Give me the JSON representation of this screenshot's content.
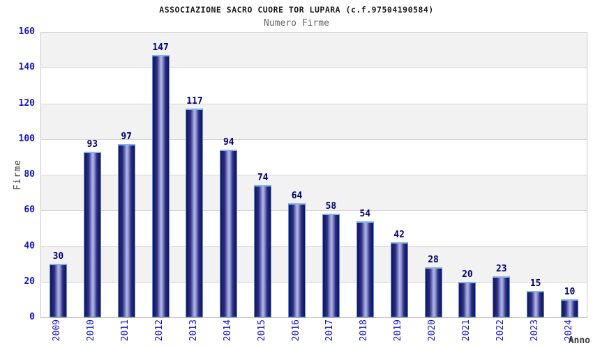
{
  "chart_data": {
    "type": "bar",
    "title": "ASSOCIAZIONE SACRO CUORE TOR LUPARA (c.f.97504190584)",
    "subtitle": "Numero Firme",
    "xlabel": "Anno",
    "ylabel": "Firme",
    "categories": [
      "2009",
      "2010",
      "2011",
      "2012",
      "2013",
      "2014",
      "2015",
      "2016",
      "2017",
      "2018",
      "2019",
      "2020",
      "2021",
      "2022",
      "2023",
      "2024"
    ],
    "values": [
      30,
      93,
      97,
      147,
      117,
      94,
      74,
      64,
      58,
      54,
      42,
      28,
      20,
      23,
      15,
      10
    ],
    "ylim": [
      0,
      160
    ],
    "ytick_step": 20,
    "grid": "horizontal-bands-alternating",
    "legend": "none",
    "bar_labels_shown": true,
    "x_labels_rotated_degrees": 90,
    "colors": {
      "bar_border": "#5a94d8",
      "bar_dark": "#14145a",
      "bar_mid": "#2d2d84",
      "bar_light": "#b4bae6",
      "tick_label": "#1414cc",
      "value_label": "#00006e",
      "band_gray": "#f2f2f2",
      "band_white": "#ffffff",
      "grid_line": "#d4d4d4",
      "title_color": "#1a1a1a",
      "subtitle_color": "#666666",
      "axis_label_color": "#3c3c3c"
    }
  }
}
